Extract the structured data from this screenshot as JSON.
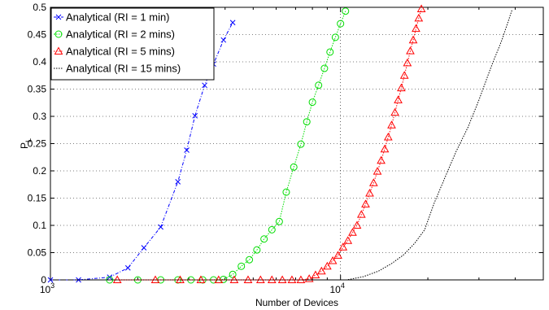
{
  "chart_data": {
    "type": "line",
    "xlabel": "Number of Devices",
    "ylabel_main": "P",
    "ylabel_sub": "L",
    "x_scale": "log",
    "xlim": [
      1000,
      50000
    ],
    "ylim": [
      0,
      0.5
    ],
    "x_ticks": [
      {
        "value": 1000,
        "base": "10",
        "exp": "3"
      },
      {
        "value": 10000,
        "base": "10",
        "exp": "4"
      }
    ],
    "y_ticks": [
      "0",
      "0.05",
      "0.1",
      "0.15",
      "0.2",
      "0.25",
      "0.3",
      "0.35",
      "0.4",
      "0.45",
      "0.5"
    ],
    "grid": true,
    "legend_position": "top-left",
    "series": [
      {
        "name": "Analytical (RI = 1 min)",
        "color": "#0000ff",
        "marker": "x",
        "line": "dashdot",
        "x": [
          1000,
          1250,
          1600,
          1850,
          2100,
          2400,
          2750,
          2950,
          3150,
          3400,
          3650,
          3950,
          4250,
          4550
        ],
        "y": [
          0,
          0,
          0.005,
          0.022,
          0.059,
          0.097,
          0.18,
          0.238,
          0.301,
          0.357,
          0.396,
          0.44,
          0.472,
          null
        ]
      },
      {
        "name": "Analytical (RI = 2 mins)",
        "color": "#00dd00",
        "marker": "circle",
        "line": "dotted",
        "x": [
          1600,
          2000,
          2400,
          2750,
          3050,
          3350,
          3650,
          3950,
          4250,
          4550,
          4850,
          5150,
          5450,
          5800,
          6150,
          6500,
          6900,
          7300,
          7650,
          8000,
          8400,
          8800,
          9200,
          9600,
          10000,
          10400,
          10800,
          11200,
          11600
        ],
        "y": [
          0,
          0,
          0,
          0,
          0,
          0,
          0,
          0.001,
          0.01,
          0.025,
          0.037,
          0.055,
          0.075,
          0.092,
          0.107,
          0.161,
          0.207,
          0.249,
          0.29,
          0.326,
          0.357,
          0.388,
          0.418,
          0.445,
          0.47,
          0.493,
          null,
          null,
          null
        ]
      },
      {
        "name": "Analytical (RI = 5 mins)",
        "color": "#ff0000",
        "marker": "triangle",
        "line": "dotted",
        "x": [
          1700,
          2300,
          2800,
          3300,
          3800,
          4300,
          4800,
          5300,
          5800,
          6300,
          6800,
          7300,
          7800,
          8200,
          8600,
          9000,
          9400,
          9800,
          10200,
          10600,
          11000,
          11400,
          11800,
          12200,
          12600,
          13000,
          13400,
          13800,
          14200,
          14600,
          15000,
          15400,
          15800,
          16200,
          16600,
          17000,
          17400,
          17800,
          18200,
          18600,
          19000
        ],
        "y": [
          0,
          0,
          0,
          0,
          0,
          0,
          0,
          0,
          0,
          0,
          0,
          0,
          0.002,
          0.009,
          0.016,
          0.025,
          0.035,
          0.045,
          0.06,
          0.072,
          0.087,
          0.1,
          0.12,
          0.139,
          0.159,
          0.178,
          0.199,
          0.219,
          0.24,
          0.262,
          0.284,
          0.307,
          0.33,
          0.352,
          0.375,
          0.398,
          0.42,
          0.44,
          0.461,
          0.48,
          0.497
        ]
      },
      {
        "name": "Analytical (RI = 15 mins)",
        "color": "#000000",
        "marker": "none",
        "line": "dotted",
        "x": [
          1000,
          10500,
          12000,
          13500,
          15000,
          16500,
          18000,
          19500,
          21000,
          23000,
          25000,
          27500,
          30000,
          33000,
          36000,
          39000
        ],
        "y": [
          0,
          0,
          0.006,
          0.016,
          0.03,
          0.046,
          0.067,
          0.092,
          0.14,
          0.19,
          0.235,
          0.28,
          0.33,
          0.39,
          0.44,
          0.495
        ]
      }
    ]
  }
}
